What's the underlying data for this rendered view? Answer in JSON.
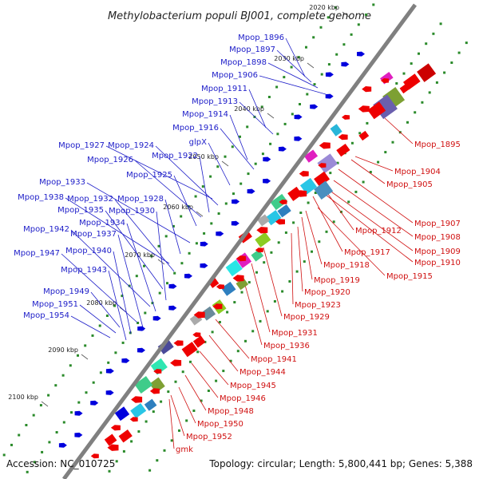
{
  "title": "Methylobacterium populi BJ001, complete genome",
  "footer": {
    "accession": "Accession: NC_010725",
    "summary": "Topology: circular; Length: 5,800,441 bp; Genes: 5,388"
  },
  "colors": {
    "backbone": "#808080",
    "forward_label": "#1c1cc8",
    "reverse_label": "#d01010",
    "forward_feature": "#0000dd",
    "reverse_feature": "#ee0000",
    "grid_dot": "#2a8a2a"
  },
  "scale_ticks": [
    "2020 kbp",
    "2030 kbp",
    "2040 kbp",
    "2050 kbp",
    "2060 kbp",
    "2070 kbp",
    "2080 kbp",
    "2090 kbp",
    "2100 kbp"
  ],
  "forward_genes": [
    "Mpop_1896",
    "Mpop_1897",
    "Mpop_1898",
    "Mpop_1906",
    "Mpop_1911",
    "Mpop_1913",
    "Mpop_1914",
    "Mpop_1916",
    "glpX",
    "Mpop_1927",
    "Mpop_1924",
    "Mpop_1926",
    "Mpop_1922",
    "Mpop_1925",
    "Mpop_1933",
    "Mpop_1938",
    "Mpop_1932",
    "Mpop_1928",
    "Mpop_1935",
    "Mpop_1930",
    "Mpop_1934",
    "Mpop_1942",
    "Mpop_1937",
    "Mpop_1947",
    "Mpop_1940",
    "Mpop_1943",
    "Mpop_1949",
    "Mpop_1951",
    "Mpop_1954"
  ],
  "reverse_genes": [
    "Mpop_1895",
    "Mpop_1904",
    "Mpop_1905",
    "Mpop_1907",
    "Mpop_1912",
    "Mpop_1908",
    "Mpop_1909",
    "Mpop_1917",
    "Mpop_1910",
    "Mpop_1918",
    "Mpop_1915",
    "Mpop_1919",
    "Mpop_1920",
    "Mpop_1923",
    "Mpop_1929",
    "Mpop_1931",
    "Mpop_1936",
    "Mpop_1941",
    "Mpop_1944",
    "Mpop_1945",
    "Mpop_1946",
    "Mpop_1948",
    "Mpop_1950",
    "Mpop_1952",
    "gmk"
  ]
}
